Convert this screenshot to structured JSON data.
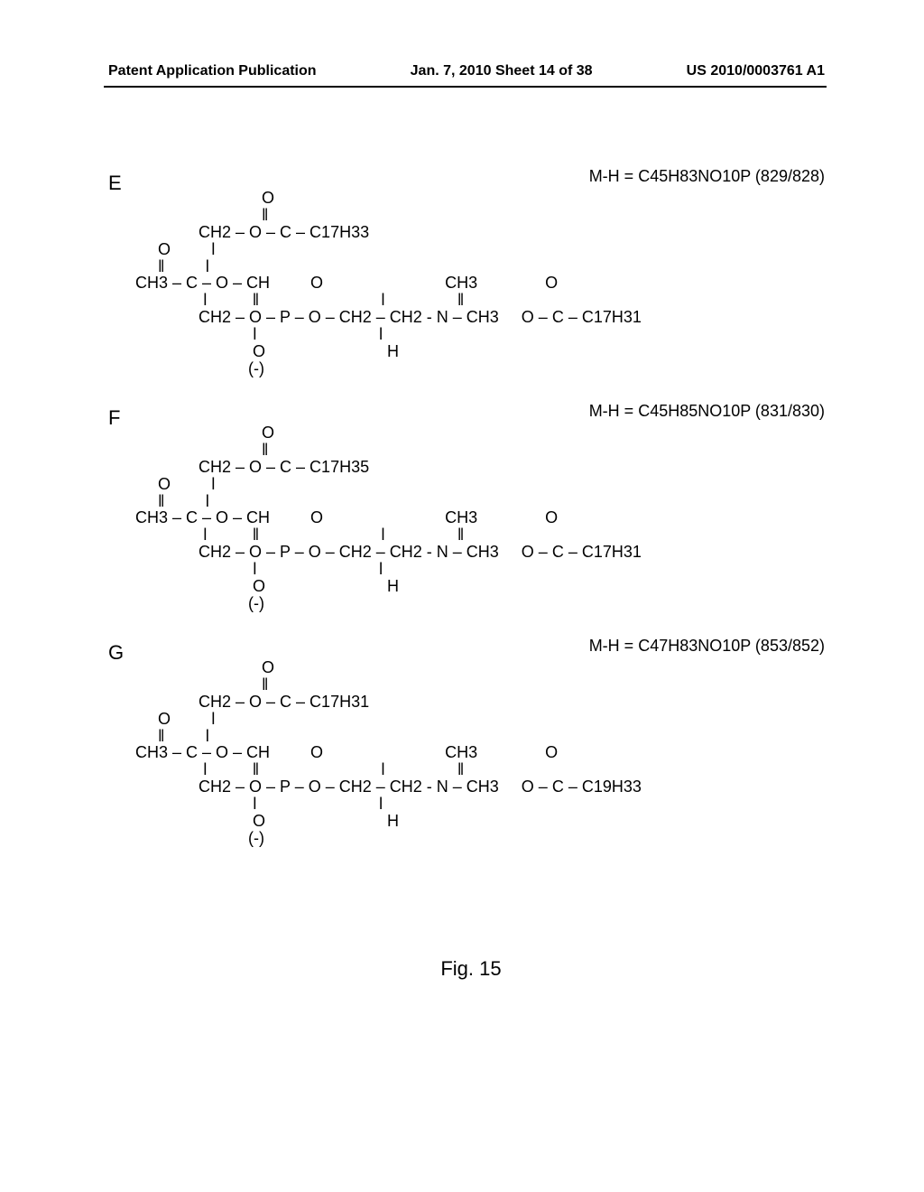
{
  "header": {
    "left": "Patent Application Publication",
    "center": "Jan. 7, 2010   Sheet 14 of 38",
    "right": "US 2010/0003761 A1"
  },
  "figure_caption": "Fig. 15",
  "structures": [
    {
      "panel": "E",
      "mh": "M-H = C45H83NO10P (829/828)",
      "chem": "                            O\n                            ǁ\n              CH2 – O – C – C17H33\n     O         ǀ\n     ǁ         ǀ\nCH3 – C – O – CH         O                           CH3               O\n               ǀ          ǁ                           ǀ                ǁ\n              CH2 – O – P – O – CH2 – CH2 - N – CH3     O – C – C17H31\n                          ǀ                           ǀ\n                          O                           H\n                         (-)"
    },
    {
      "panel": "F",
      "mh": "M-H = C45H85NO10P (831/830)",
      "chem": "                            O\n                            ǁ\n              CH2 – O – C – C17H35\n     O         ǀ\n     ǁ         ǀ\nCH3 – C – O – CH         O                           CH3               O\n               ǀ          ǁ                           ǀ                ǁ\n              CH2 – O – P – O – CH2 – CH2 - N – CH3     O – C – C17H31\n                          ǀ                           ǀ\n                          O                           H\n                         (-)"
    },
    {
      "panel": "G",
      "mh": "M-H = C47H83NO10P (853/852)",
      "chem": "                            O\n                            ǁ\n              CH2 – O – C – C17H31\n     O         ǀ\n     ǁ         ǀ\nCH3 – C – O – CH         O                           CH3               O\n               ǀ          ǁ                           ǀ                ǁ\n              CH2 – O – P – O – CH2 – CH2 - N – CH3     O – C – C19H33\n                          ǀ                           ǀ\n                          O                           H\n                         (-)"
    }
  ]
}
